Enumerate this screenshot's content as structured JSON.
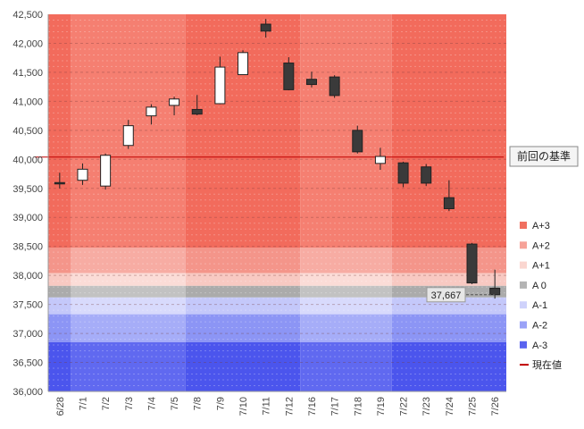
{
  "chart_data": {
    "type": "candlestick",
    "categories": [
      "6/28",
      "7/1",
      "7/2",
      "7/3",
      "7/4",
      "7/5",
      "7/8",
      "7/9",
      "7/10",
      "7/11",
      "7/12",
      "7/16",
      "7/17",
      "7/18",
      "7/19",
      "7/22",
      "7/23",
      "7/24",
      "7/25",
      "7/26"
    ],
    "ohlc": [
      {
        "open": 39600,
        "high": 39770,
        "low": 39500,
        "close": 39590
      },
      {
        "open": 39640,
        "high": 39930,
        "low": 39560,
        "close": 39830
      },
      {
        "open": 39540,
        "high": 40100,
        "low": 39480,
        "close": 40070
      },
      {
        "open": 40240,
        "high": 40680,
        "low": 40180,
        "close": 40580
      },
      {
        "open": 40750,
        "high": 40950,
        "low": 40600,
        "close": 40900
      },
      {
        "open": 40930,
        "high": 41080,
        "low": 40760,
        "close": 41040
      },
      {
        "open": 40860,
        "high": 41110,
        "low": 40760,
        "close": 40780
      },
      {
        "open": 40960,
        "high": 41770,
        "low": 40950,
        "close": 41590
      },
      {
        "open": 41460,
        "high": 41880,
        "low": 41460,
        "close": 41840
      },
      {
        "open": 42330,
        "high": 42420,
        "low": 42100,
        "close": 42210
      },
      {
        "open": 41660,
        "high": 41760,
        "low": 41190,
        "close": 41200
      },
      {
        "open": 41380,
        "high": 41510,
        "low": 41240,
        "close": 41290
      },
      {
        "open": 41420,
        "high": 41450,
        "low": 41060,
        "close": 41100
      },
      {
        "open": 40500,
        "high": 40580,
        "low": 40100,
        "close": 40130
      },
      {
        "open": 39930,
        "high": 40200,
        "low": 39820,
        "close": 40050
      },
      {
        "open": 39940,
        "high": 39960,
        "low": 39520,
        "close": 39590
      },
      {
        "open": 39870,
        "high": 39920,
        "low": 39540,
        "close": 39590
      },
      {
        "open": 39340,
        "high": 39640,
        "low": 39110,
        "close": 39150
      },
      {
        "open": 38540,
        "high": 38560,
        "low": 37850,
        "close": 37870
      },
      {
        "open": 37780,
        "high": 38100,
        "low": 37600,
        "close": 37667
      }
    ],
    "ylim": [
      36000,
      42500
    ],
    "yticks": [
      "36,000",
      "36,500",
      "37,000",
      "37,500",
      "38,000",
      "38,500",
      "39,000",
      "39,500",
      "40,000",
      "40,500",
      "41,000",
      "41,500",
      "42,000",
      "42,500"
    ],
    "ytick_values": [
      36000,
      36500,
      37000,
      37500,
      38000,
      38500,
      39000,
      39500,
      40000,
      40500,
      41000,
      41500,
      42000,
      42500
    ],
    "reference_value": 40040,
    "reference_label": "前回の基準",
    "current_value": 37667,
    "current_value_label": "37,667",
    "band_edges": [
      42500,
      38480,
      38040,
      37820,
      37620,
      37330,
      36850,
      36000
    ],
    "band_labels": [
      "A+3",
      "A+2",
      "A+1",
      "A 0",
      "A-1",
      "A-2",
      "A-3"
    ],
    "legend": [
      {
        "label": "A+3",
        "color": "#f07060"
      },
      {
        "label": "A+2",
        "color": "#f6a298"
      },
      {
        "label": "A+1",
        "color": "#fad6d0"
      },
      {
        "label": "A 0",
        "color": "#b4b4b4"
      },
      {
        "label": "A-1",
        "color": "#cfd2fb"
      },
      {
        "label": "A-2",
        "color": "#9aa2f7"
      },
      {
        "label": "A-3",
        "color": "#5a63ef"
      },
      {
        "label": "現在値",
        "color": "#c00000"
      }
    ],
    "colors": {
      "band_dark": [
        "#f26b5c",
        "#f4958a",
        "#f8c9c2",
        "#ababab",
        "#c4c8fa",
        "#8c95f5",
        "#4b55ed"
      ],
      "band_light": [
        "#f57f71",
        "#f7aca3",
        "#fbdcd7",
        "#c2c2c2",
        "#d8dafc",
        "#a6adf8",
        "#6069f0"
      ],
      "up_fill": "#ffffff",
      "down_fill": "#3a3a3a",
      "candle_stroke": "#222222",
      "reference_line": "#c00000"
    }
  }
}
